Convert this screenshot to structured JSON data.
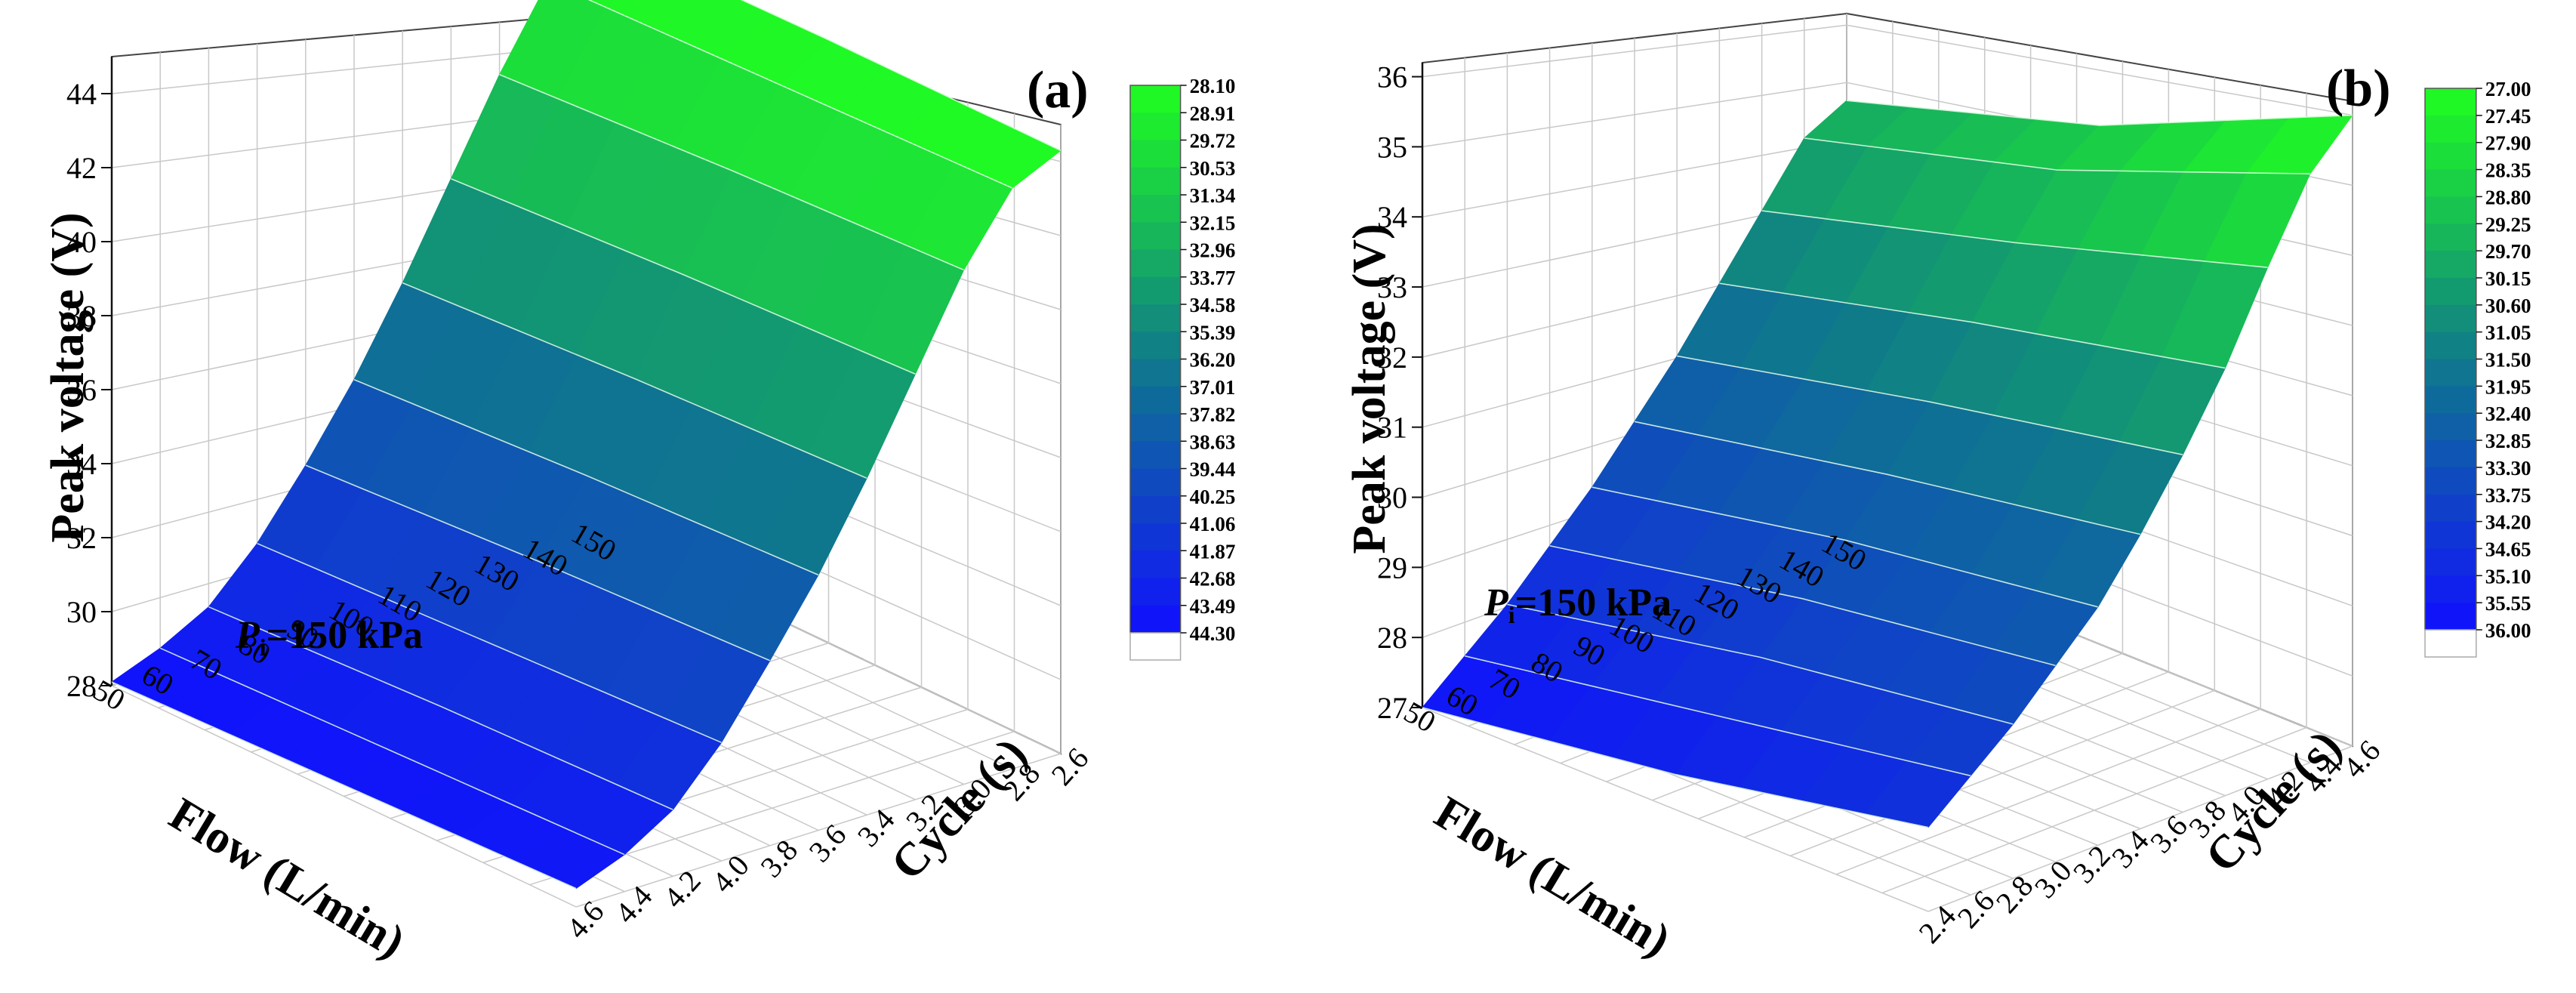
{
  "chart_data": [
    {
      "type": "surface",
      "panel_label": "(a)",
      "ylabel": "Peak voltage (V)",
      "xlabel": "Flow (L/min)",
      "zlabel": "Cycle (s)",
      "annotation": {
        "symbol": "P",
        "subscript": "i",
        "text": "=150 kPa"
      },
      "voltage_ticks": [
        28,
        30,
        32,
        34,
        36,
        38,
        40,
        42,
        44
      ],
      "voltage_range": [
        28,
        45
      ],
      "flow_ticks": [
        150,
        140,
        130,
        120,
        110,
        100,
        90,
        80,
        70,
        60,
        50
      ],
      "cycle_ticks": [
        2.6,
        2.8,
        3.0,
        3.2,
        3.4,
        3.6,
        3.8,
        4.0,
        4.2,
        4.4,
        4.6
      ],
      "colorbar_ticks": [
        "28.10",
        "28.91",
        "29.72",
        "30.53",
        "31.34",
        "32.15",
        "32.96",
        "33.77",
        "34.58",
        "35.39",
        "36.20",
        "37.01",
        "37.82",
        "38.63",
        "39.44",
        "40.25",
        "41.06",
        "41.87",
        "42.68",
        "43.49",
        "44.30"
      ],
      "colorbar_range": [
        28.1,
        44.3
      ],
      "surface": {
        "cycles": [
          2.6,
          3.6,
          4.6
        ],
        "flows": [
          150,
          140,
          130,
          120,
          110,
          100,
          90,
          80,
          70,
          60,
          50
        ],
        "values": [
          [
            44.2,
            44.3,
            44.3
          ],
          [
            43.3,
            43.5,
            43.7
          ],
          [
            41.2,
            41.6,
            41.9
          ],
          [
            38.8,
            39.2,
            39.5
          ],
          [
            36.4,
            36.8,
            37.1
          ],
          [
            34.2,
            34.6,
            34.9
          ],
          [
            32.3,
            32.7,
            33.0
          ],
          [
            30.6,
            30.9,
            31.2
          ],
          [
            29.3,
            29.6,
            29.8
          ],
          [
            28.6,
            28.8,
            29.0
          ],
          [
            28.1,
            28.3,
            28.5
          ]
        ]
      }
    },
    {
      "type": "surface",
      "panel_label": "(b)",
      "ylabel": "Peak voltage (V)",
      "xlabel": "Flow (L/min)",
      "zlabel": "Cycle (s)",
      "annotation": {
        "symbol": "P",
        "subscript": "i",
        "text": "=150 kPa"
      },
      "voltage_ticks": [
        27,
        28,
        29,
        30,
        31,
        32,
        33,
        34,
        35,
        36
      ],
      "voltage_range": [
        27,
        36.2
      ],
      "flow_ticks": [
        150,
        140,
        130,
        120,
        110,
        100,
        90,
        80,
        70,
        60,
        50
      ],
      "cycle_ticks": [
        4.6,
        4.4,
        4.2,
        4.0,
        3.8,
        3.6,
        3.4,
        3.2,
        3.0,
        2.8,
        2.6,
        2.4
      ],
      "colorbar_ticks": [
        "27.00",
        "27.45",
        "27.90",
        "28.35",
        "28.80",
        "29.25",
        "29.70",
        "30.15",
        "30.60",
        "31.05",
        "31.50",
        "31.95",
        "32.40",
        "32.85",
        "33.30",
        "33.75",
        "34.20",
        "34.65",
        "35.10",
        "35.55",
        "36.00"
      ],
      "colorbar_range": [
        27.0,
        36.0
      ],
      "surface": {
        "cycles": [
          4.6,
          3.5,
          2.4
        ],
        "flows": [
          150,
          140,
          130,
          120,
          110,
          100,
          90,
          80,
          70,
          60,
          50
        ],
        "values": [
          [
            33.3,
            34.4,
            36.0
          ],
          [
            33.0,
            34.0,
            35.4
          ],
          [
            32.2,
            33.2,
            34.3
          ],
          [
            31.4,
            32.3,
            33.1
          ],
          [
            30.6,
            31.4,
            32.1
          ],
          [
            29.9,
            30.6,
            31.2
          ],
          [
            29.2,
            29.9,
            30.4
          ],
          [
            28.6,
            29.3,
            29.8
          ],
          [
            28.0,
            28.7,
            29.2
          ],
          [
            27.5,
            28.1,
            28.7
          ],
          [
            27.0,
            27.5,
            28.2
          ]
        ]
      }
    }
  ]
}
